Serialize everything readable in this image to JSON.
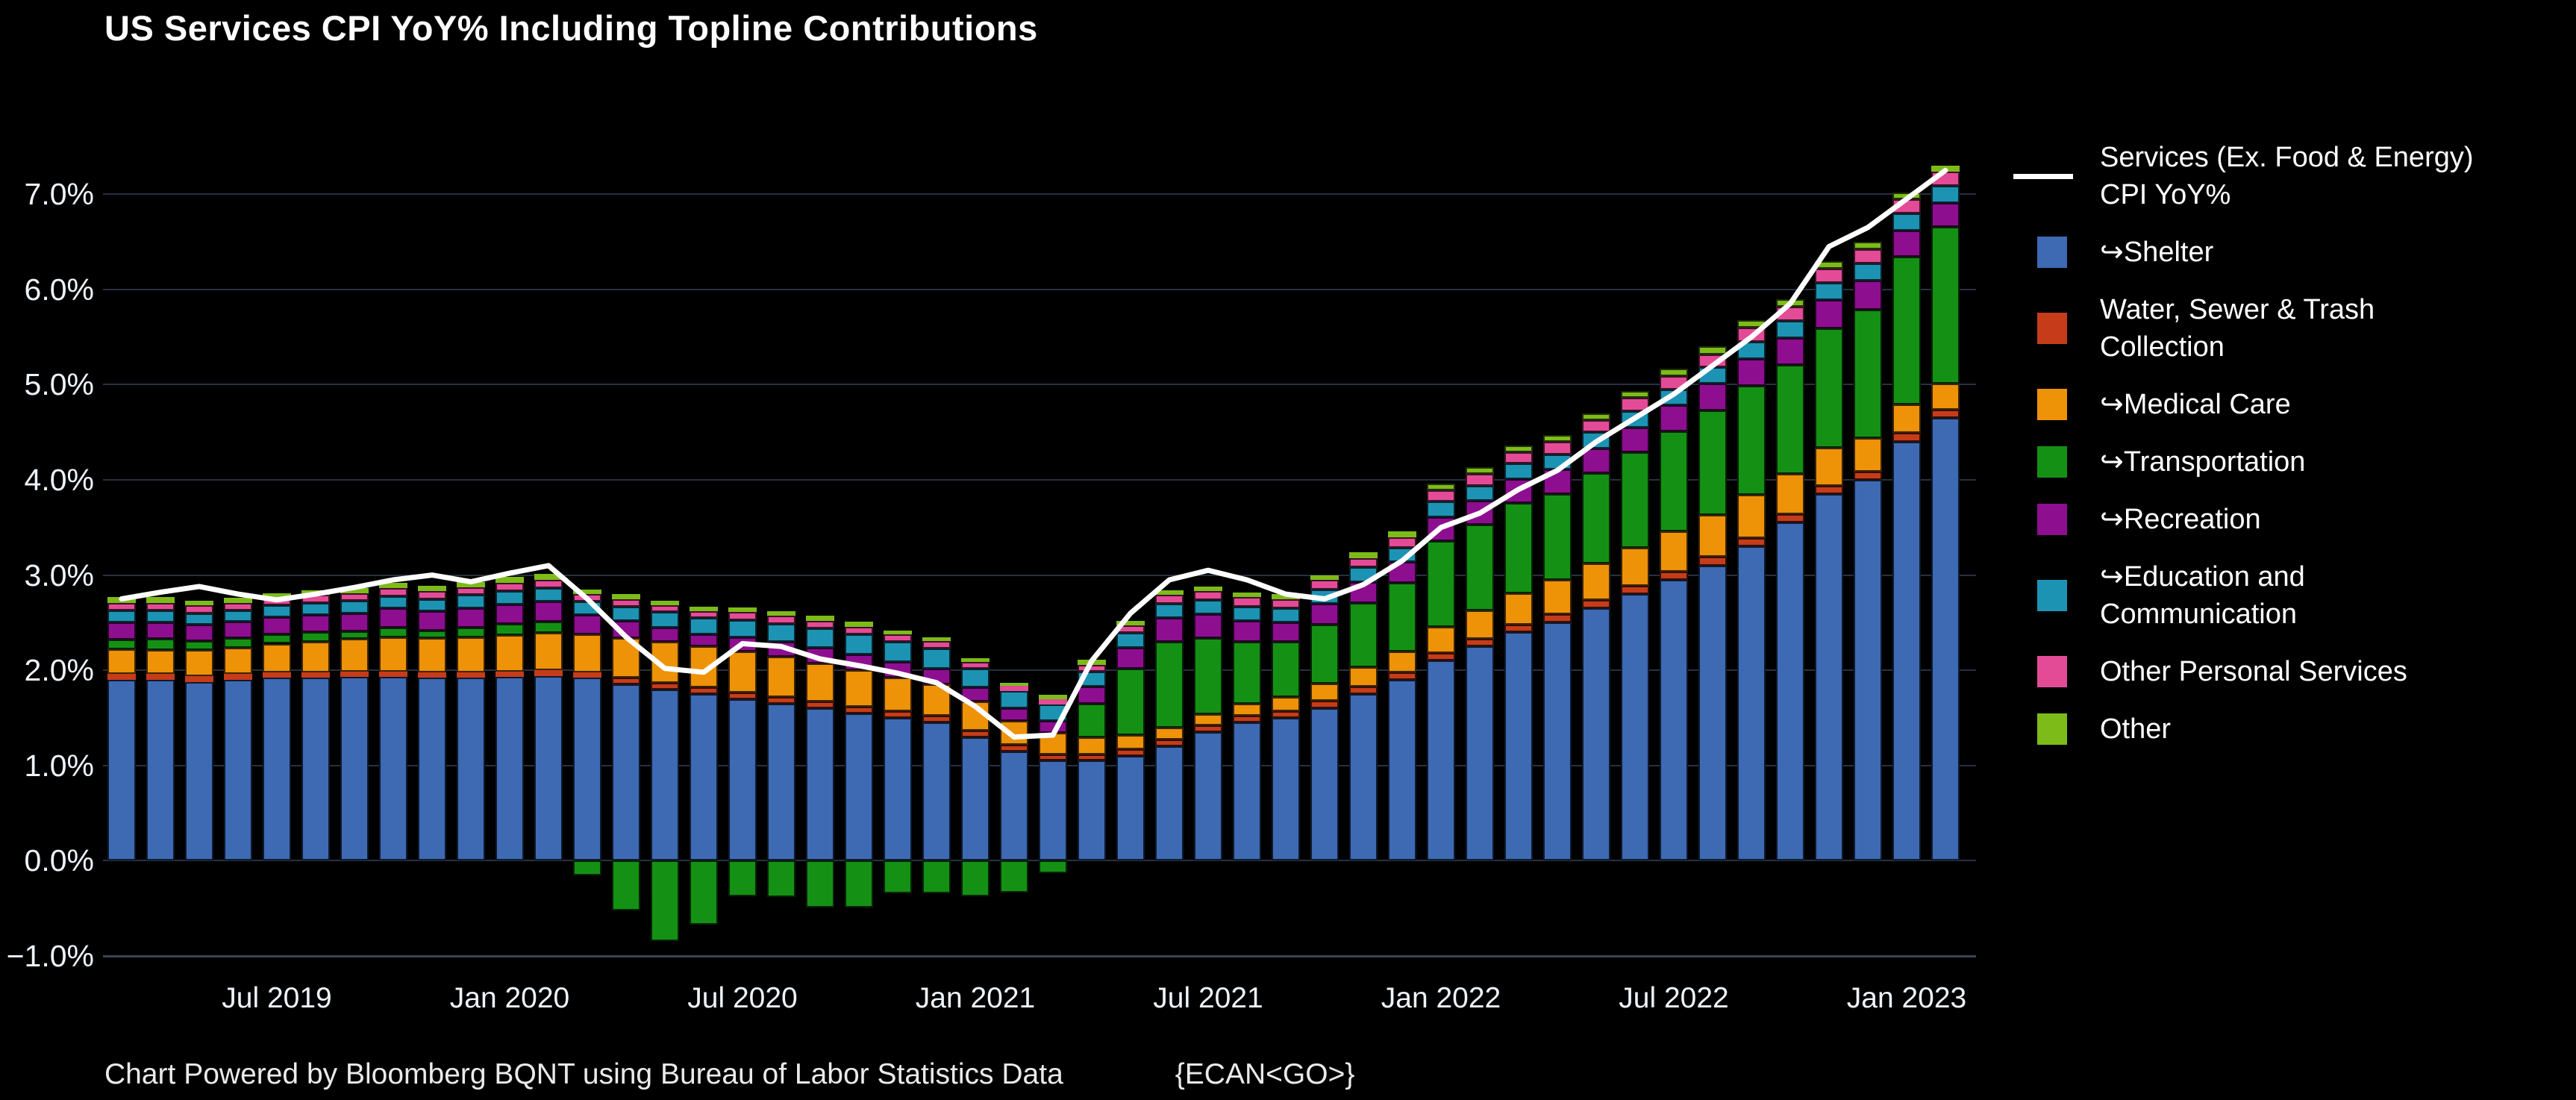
{
  "title": "US Services CPI YoY% Including Topline Contributions",
  "footer": {
    "text": "Chart Powered by Bloomberg BQNT using Bureau of Labor Statistics Data",
    "code": "{ECAN<GO>}"
  },
  "colors": {
    "background": "#000000",
    "grid": "#273140",
    "axis_text": "#eef4fb",
    "line": "#ffffff",
    "shelter": "#3e6ab4",
    "water_sewer_trash": "#c63c1a",
    "medical_care": "#ee9207",
    "transportation": "#149114",
    "recreation": "#8e0e90",
    "education_communication": "#1d93b4",
    "other_personal_services": "#e34b97",
    "other": "#7dbb18"
  },
  "axes": {
    "ymax": 7.55,
    "ymin": -1.07,
    "y_tick_values": [
      7,
      6,
      5,
      4,
      3,
      2,
      1,
      0,
      -1
    ],
    "y_tick_labels": [
      "7.0%",
      "6.0%",
      "5.0%",
      "4.0%",
      "3.0%",
      "2.0%",
      "1.0%",
      "0.0%",
      "−1.0%"
    ],
    "x_tick_indices": [
      4,
      10,
      16,
      22,
      28,
      34,
      40,
      46
    ],
    "x_tick_labels": [
      "Jul 2019",
      "Jan 2020",
      "Jul 2020",
      "Jan 2021",
      "Jul 2021",
      "Jan 2022",
      "Jul 2022",
      "Jan 2023"
    ]
  },
  "legend": {
    "items": [
      {
        "key": "line",
        "type": "line",
        "color": "#ffffff",
        "label": "Services (Ex. Food & Energy) CPI YoY%"
      },
      {
        "key": "shelter",
        "type": "square",
        "color": "#3e6ab4",
        "label": "↪Shelter"
      },
      {
        "key": "water_sewer_trash",
        "type": "square",
        "color": "#c63c1a",
        "label": "Water, Sewer & Trash Collection"
      },
      {
        "key": "medical_care",
        "type": "square",
        "color": "#ee9207",
        "label": "↪Medical Care"
      },
      {
        "key": "transportation",
        "type": "square",
        "color": "#149114",
        "label": "↪Transportation"
      },
      {
        "key": "recreation",
        "type": "square",
        "color": "#8e0e90",
        "label": "↪Recreation"
      },
      {
        "key": "education_communication",
        "type": "square",
        "color": "#1d93b4",
        "label": "↪Education and Communication"
      },
      {
        "key": "other_personal_services",
        "type": "square",
        "color": "#e34b97",
        "label": "Other Personal Services"
      },
      {
        "key": "other",
        "type": "square",
        "color": "#7dbb18",
        "label": "Other"
      }
    ]
  },
  "chart_data": {
    "type": "bar",
    "stacked": true,
    "grid": true,
    "legend_position": "right",
    "title": "US Services CPI YoY% Including Topline Contributions",
    "xlabel": "",
    "ylabel": "",
    "ylim": [
      -1.07,
      7.55
    ],
    "x": [
      "2019-03",
      "2019-04",
      "2019-05",
      "2019-06",
      "2019-07",
      "2019-08",
      "2019-09",
      "2019-10",
      "2019-11",
      "2019-12",
      "2020-01",
      "2020-02",
      "2020-03",
      "2020-04",
      "2020-05",
      "2020-06",
      "2020-07",
      "2020-08",
      "2020-09",
      "2020-10",
      "2020-11",
      "2020-12",
      "2021-01",
      "2021-02",
      "2021-03",
      "2021-04",
      "2021-05",
      "2021-06",
      "2021-07",
      "2021-08",
      "2021-09",
      "2021-10",
      "2021-11",
      "2021-12",
      "2022-01",
      "2022-02",
      "2022-03",
      "2022-04",
      "2022-05",
      "2022-06",
      "2022-07",
      "2022-08",
      "2022-09",
      "2022-10",
      "2022-11",
      "2022-12",
      "2023-01",
      "2023-02"
    ],
    "series": [
      {
        "key": "shelter",
        "name": "↪Shelter",
        "color": "#3e6ab4",
        "values": [
          1.9,
          1.9,
          1.88,
          1.9,
          1.92,
          1.92,
          1.93,
          1.93,
          1.92,
          1.92,
          1.93,
          1.94,
          1.92,
          1.85,
          1.8,
          1.75,
          1.7,
          1.65,
          1.6,
          1.55,
          1.5,
          1.45,
          1.3,
          1.15,
          1.05,
          1.05,
          1.1,
          1.2,
          1.35,
          1.45,
          1.5,
          1.6,
          1.75,
          1.9,
          2.1,
          2.25,
          2.4,
          2.5,
          2.65,
          2.8,
          2.95,
          3.1,
          3.3,
          3.55,
          3.85,
          4.0,
          4.4,
          4.65
        ]
      },
      {
        "key": "water_sewer_trash",
        "name": "Water, Sewer & Trash Collection",
        "color": "#c63c1a",
        "values": [
          0.06,
          0.06,
          0.06,
          0.06,
          0.06,
          0.06,
          0.06,
          0.06,
          0.06,
          0.06,
          0.06,
          0.06,
          0.06,
          0.07,
          0.07,
          0.07,
          0.07,
          0.07,
          0.07,
          0.07,
          0.07,
          0.07,
          0.07,
          0.07,
          0.07,
          0.07,
          0.07,
          0.07,
          0.07,
          0.07,
          0.07,
          0.08,
          0.08,
          0.08,
          0.08,
          0.08,
          0.08,
          0.09,
          0.09,
          0.09,
          0.09,
          0.09,
          0.09,
          0.09,
          0.09,
          0.09,
          0.09,
          0.09
        ]
      },
      {
        "key": "medical_care",
        "name": "↪Medical Care",
        "color": "#ee9207",
        "values": [
          0.26,
          0.25,
          0.27,
          0.28,
          0.3,
          0.32,
          0.34,
          0.36,
          0.36,
          0.37,
          0.38,
          0.39,
          0.4,
          0.42,
          0.43,
          0.43,
          0.43,
          0.42,
          0.4,
          0.38,
          0.35,
          0.33,
          0.3,
          0.25,
          0.22,
          0.18,
          0.15,
          0.13,
          0.12,
          0.13,
          0.15,
          0.18,
          0.2,
          0.22,
          0.28,
          0.3,
          0.33,
          0.36,
          0.38,
          0.4,
          0.42,
          0.44,
          0.45,
          0.42,
          0.4,
          0.35,
          0.3,
          0.27
        ]
      },
      {
        "key": "transportation",
        "name": "↪Transportation",
        "color": "#149114",
        "values": [
          0.1,
          0.12,
          0.1,
          0.1,
          0.1,
          0.1,
          0.08,
          0.1,
          0.08,
          0.1,
          0.12,
          0.12,
          -0.15,
          -0.52,
          -0.84,
          -0.67,
          -0.37,
          -0.38,
          -0.49,
          -0.49,
          -0.34,
          -0.34,
          -0.37,
          -0.33,
          -0.13,
          0.35,
          0.7,
          0.9,
          0.8,
          0.65,
          0.58,
          0.62,
          0.68,
          0.72,
          0.9,
          0.9,
          0.95,
          0.9,
          0.95,
          1.0,
          1.05,
          1.1,
          1.15,
          1.15,
          1.25,
          1.35,
          1.55,
          1.65
        ]
      },
      {
        "key": "recreation",
        "name": "↪Recreation",
        "color": "#8e0e90",
        "values": [
          0.18,
          0.17,
          0.17,
          0.17,
          0.18,
          0.18,
          0.19,
          0.2,
          0.2,
          0.2,
          0.2,
          0.21,
          0.2,
          0.18,
          0.15,
          0.13,
          0.15,
          0.16,
          0.17,
          0.17,
          0.17,
          0.17,
          0.15,
          0.13,
          0.13,
          0.18,
          0.22,
          0.25,
          0.25,
          0.22,
          0.2,
          0.22,
          0.22,
          0.22,
          0.25,
          0.25,
          0.25,
          0.26,
          0.26,
          0.26,
          0.27,
          0.28,
          0.28,
          0.28,
          0.3,
          0.3,
          0.28,
          0.25
        ]
      },
      {
        "key": "education_communication",
        "name": "↪Education and Communication",
        "color": "#1d93b4",
        "values": [
          0.13,
          0.13,
          0.12,
          0.12,
          0.12,
          0.13,
          0.13,
          0.13,
          0.13,
          0.14,
          0.14,
          0.14,
          0.14,
          0.15,
          0.16,
          0.17,
          0.18,
          0.19,
          0.2,
          0.21,
          0.21,
          0.21,
          0.2,
          0.18,
          0.17,
          0.16,
          0.15,
          0.15,
          0.15,
          0.15,
          0.15,
          0.15,
          0.15,
          0.15,
          0.16,
          0.16,
          0.16,
          0.16,
          0.17,
          0.17,
          0.17,
          0.17,
          0.18,
          0.18,
          0.18,
          0.18,
          0.18,
          0.18
        ]
      },
      {
        "key": "other_personal_services",
        "name": "Other Personal Services",
        "color": "#e34b97",
        "values": [
          0.08,
          0.08,
          0.08,
          0.08,
          0.08,
          0.08,
          0.08,
          0.08,
          0.08,
          0.08,
          0.09,
          0.09,
          0.08,
          0.08,
          0.07,
          0.07,
          0.08,
          0.08,
          0.08,
          0.08,
          0.08,
          0.08,
          0.07,
          0.06,
          0.06,
          0.07,
          0.08,
          0.09,
          0.09,
          0.1,
          0.1,
          0.1,
          0.1,
          0.11,
          0.12,
          0.12,
          0.12,
          0.13,
          0.13,
          0.14,
          0.14,
          0.14,
          0.15,
          0.15,
          0.15,
          0.15,
          0.15,
          0.15
        ]
      },
      {
        "key": "other",
        "name": "Other",
        "color": "#7dbb18",
        "values": [
          0.06,
          0.06,
          0.05,
          0.05,
          0.05,
          0.05,
          0.05,
          0.06,
          0.06,
          0.06,
          0.06,
          0.06,
          0.05,
          0.05,
          0.05,
          0.05,
          0.05,
          0.05,
          0.05,
          0.05,
          0.04,
          0.04,
          0.04,
          0.03,
          0.04,
          0.05,
          0.05,
          0.05,
          0.05,
          0.05,
          0.05,
          0.05,
          0.06,
          0.06,
          0.07,
          0.07,
          0.07,
          0.07,
          0.07,
          0.07,
          0.08,
          0.08,
          0.08,
          0.08,
          0.08,
          0.08,
          0.07,
          0.06
        ]
      }
    ],
    "line_series": {
      "name": "Services (Ex. Food & Energy) CPI YoY%",
      "color": "#ffffff",
      "values": [
        2.75,
        2.82,
        2.88,
        2.8,
        2.74,
        2.8,
        2.87,
        2.95,
        3.0,
        2.93,
        3.02,
        3.1,
        2.75,
        2.35,
        2.02,
        1.98,
        2.28,
        2.25,
        2.12,
        2.05,
        1.97,
        1.87,
        1.62,
        1.3,
        1.32,
        2.1,
        2.6,
        2.95,
        3.05,
        2.95,
        2.8,
        2.75,
        2.9,
        3.15,
        3.5,
        3.65,
        3.9,
        4.1,
        4.4,
        4.65,
        4.9,
        5.2,
        5.5,
        5.85,
        6.45,
        6.65,
        6.95,
        7.25
      ]
    }
  }
}
